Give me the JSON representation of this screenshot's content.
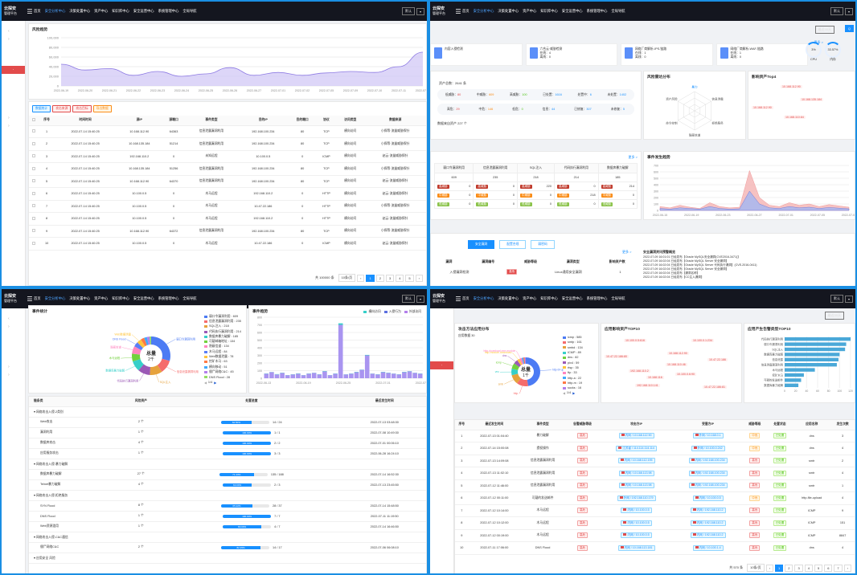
{
  "brand": {
    "l1": "云探安",
    "l2": "管理平台"
  },
  "nav": [
    "首页",
    "安全分析中心",
    "决策处置中心",
    "资产中心",
    "知识库中心",
    "安全运营中心",
    "系统管理中心",
    "全局导航"
  ],
  "nav_active": 1,
  "user": "默认",
  "q1": {
    "title": "风险趋势",
    "y_ticks": [
      "100,000",
      "80,000",
      "60,000",
      "40,000",
      "20,000",
      "0"
    ],
    "x_ticks": [
      "2022-06-19",
      "2022-06-20",
      "2022-06-21",
      "2022-06-22",
      "2022-06-23",
      "2022-06-24",
      "2022-06-25",
      "2022-06-26",
      "2022-06-27",
      "2022-07-01",
      "2022-07-02",
      "2022-07-05",
      "2022-07-09",
      "2022-07-10",
      "2022-07-11",
      "2022-07-12"
    ],
    "chart_data": {
      "type": "area",
      "series": [
        {
          "values": [
            45000,
            33000,
            36000,
            22000,
            30000,
            20000,
            25000,
            38000,
            22000,
            28000,
            22000,
            27000,
            30000,
            28000,
            40000,
            70000
          ]
        }
      ],
      "ylim": [
        0,
        100000
      ]
    },
    "tabs": [
      "数据统计",
      "攻击来源",
      "攻击目标",
      "导出数据"
    ],
    "cols": [
      "序号",
      "时间时间",
      "源IP",
      "源端口",
      "事件类型",
      "目的IP",
      "目的端口",
      "协议",
      "访问类型",
      "数据来源"
    ],
    "rows": [
      [
        "1",
        "2022-07-14 15:40:25",
        "10.168.112.90",
        "64363",
        "信息泄露漏洞利用",
        "192.168.100.234",
        "80",
        "TCP",
        "横向访问",
        "小探等·流量威胁探针"
      ],
      [
        "2",
        "2022-07-14 15:40:25",
        "10.168.135.184",
        "51214",
        "信息泄露漏洞利用",
        "192.168.100.234",
        "80",
        "TCP",
        "横向访问",
        "小探等·流量威胁探针"
      ],
      [
        "3",
        "2022-07-14 15:40:25",
        "192.168.110.2",
        "0",
        "未知远程",
        "10.100.0.5",
        "0",
        "ICMP",
        "横向访问",
        "赵云·流量威胁探针"
      ],
      [
        "4",
        "2022-07-14 15:40:25",
        "10.168.135.184",
        "51256",
        "信息泄露漏洞利用",
        "192.168.100.234",
        "80",
        "TCP",
        "横向访问",
        "小探等·流量威胁探针"
      ],
      [
        "5",
        "2022-07-14 15:40:25",
        "10.168.112.90",
        "64370",
        "信息泄露漏洞利用",
        "192.168.100.234",
        "80",
        "TCP",
        "横向访问",
        "赵云·流量威胁探针"
      ],
      [
        "6",
        "2022-07-14 15:40:25",
        "10.100.0.5",
        "0",
        "木马远程",
        "192.168.110.2",
        "0",
        "HTTP",
        "横向访问",
        "赵云·流量威胁探针"
      ],
      [
        "7",
        "2022-07-14 15:40:25",
        "10.100.0.5",
        "0",
        "木马远程",
        "10.47.22.186",
        "0",
        "HTTP",
        "横向访问",
        "小探等·流量威胁探针"
      ],
      [
        "8",
        "2022-07-14 15:40:25",
        "10.100.0.5",
        "0",
        "木马远程",
        "192.168.110.2",
        "0",
        "HTTP",
        "横向访问",
        "赵云·流量威胁探针"
      ],
      [
        "9",
        "2022-07-14 15:40:25",
        "10.168.112.90",
        "64372",
        "信息泄露漏洞利用",
        "192.168.100.234",
        "80",
        "TCP",
        "横向访问",
        "小探等·流量威胁探针"
      ],
      [
        "10",
        "2022-07-14 15:40:25",
        "10.100.0.5",
        "0",
        "木马远程",
        "10.47.22.186",
        "0",
        "ICMP",
        "横向访问",
        "赵云·流量威胁探针"
      ]
    ],
    "total": "共 100000 条",
    "pagesize": "10条/页",
    "pages": [
      "1",
      "2",
      "3",
      "4",
      "5"
    ]
  },
  "q2": {
    "btn_time": "最近30天",
    "top_cards": [
      {
        "title": "内容入侵检测",
        "l1": "",
        "l2": ""
      },
      {
        "title": "六合云·威胁检测",
        "l1": "在线：4",
        "l2": "离线：0"
      },
      {
        "title": "网络厂商解析-IPS-链路",
        "l1": "在线：1",
        "l2": "离线：0"
      },
      {
        "title": "网络厂商解析-WAF-链路",
        "l1": "在线：1",
        "l2": "离线：0"
      }
    ],
    "gauges": [
      {
        "v": "3%",
        "l": "CPU"
      },
      {
        "v": "33.57%",
        "l": "内存"
      }
    ],
    "more": "更多 >",
    "asset_total": "资产总数：2641 条",
    "asset_r1": [
      [
        "低威胁",
        "80"
      ],
      [
        "中威胁",
        "609"
      ],
      [
        "高威胁",
        "100"
      ],
      [
        "已处置",
        "1616"
      ],
      [
        "处置中",
        "6"
      ],
      [
        "未处置",
        "1402"
      ]
    ],
    "asset_r2": [
      [
        "高危",
        "29"
      ],
      [
        "中危",
        "146"
      ],
      [
        "低危",
        "0"
      ],
      [
        "信息",
        "44"
      ],
      [
        "已修复",
        "307"
      ],
      [
        "未修复",
        "5"
      ]
    ],
    "asset_foot": "数据来自资产 227 个",
    "radar_title": "风险雷达分布",
    "radar_labels": [
      "暴力",
      "信息泄露",
      "拒绝服务",
      "隐蔽信道",
      "命令控制",
      "资产风险"
    ],
    "top_title": "影响资产Top4",
    "top_ips": [
      "10.168.112.90",
      "10.168.135.184",
      "10.168.112.90",
      "10.168.110.64"
    ],
    "event_cols": [
      "弱口令漏洞利用",
      "信息泄露漏洞利用",
      "SQL注入",
      "代码执行漏洞利用",
      "数据库暴力破解"
    ],
    "event_vals": [
      "609",
      "235",
      "218",
      "214",
      "185"
    ],
    "event_rows": [
      [
        "0",
        "0",
        "220",
        "0",
        "214"
      ],
      [
        "0",
        "0",
        "0",
        "218",
        "0"
      ],
      [
        "0",
        "0",
        "0",
        "0",
        "0"
      ]
    ],
    "event_tags": [
      "高威胁",
      "中威胁",
      "低威胁"
    ],
    "trend_title": "事件发生趋势",
    "trend_x": [
      "2022-06-15",
      "2022-06-19",
      "2022-06-23",
      "2022-06-27",
      "2022-07-01",
      "2022-07-05",
      "2022-07-09"
    ],
    "trend_y": [
      "700",
      "600",
      "500",
      "400",
      "300",
      "200",
      "100",
      "0"
    ],
    "chart_data": {
      "type": "area",
      "series": [
        {
          "values": [
            60,
            40,
            80,
            50,
            30,
            120,
            60,
            40,
            50,
            620,
            200,
            80,
            60,
            120,
            80,
            100,
            60,
            90,
            70,
            50
          ]
        },
        {
          "values": [
            30,
            20,
            40,
            30,
            20,
            60,
            30,
            20,
            25,
            300,
            100,
            40,
            30,
            60,
            40,
            50,
            30,
            45,
            35,
            25
          ]
        }
      ],
      "ylim": [
        0,
        700
      ]
    },
    "subtabs": [
      "安全漏洞",
      "配置合规",
      "弱密码"
    ],
    "vuln_cols": [
      "漏洞编号",
      "威胁等级",
      "漏洞类型",
      "影响资产数"
    ],
    "vuln_row": [
      "",
      "",
      "Linux通用安全漏洞",
      "1"
    ],
    "vuln_name": "漏洞",
    "vuln_first": "入侵漏洞检测",
    "vuln_tag": "高危",
    "notice_title": "安全漏洞资讯预警概览",
    "notices": [
      "2022-07-09 16:01:01 已经发布【Oracle MySQL安全漏洞(CVE2016-3471)】",
      "2022-07-09 16:02:04 已经发布【Oracle MySQL Server 安全漏洞】",
      "2022-07-09 16:02:04 已经发布【Oracle MySQL Server 代码执行漏洞】(CVE-2016-0411)",
      "2022-07-09 16:02:04 已经发布【Oracle MySQL Server 安全漏洞】",
      "2022-07-09 16:02:04 已经发布【漏洞名称】",
      "2022-07-09 16:02:04 已经发布【CC注入漏洞】"
    ]
  },
  "q3": {
    "donut_title": "事件统计",
    "donut_center": "总量",
    "donut_center_val": "2千",
    "donut_labels": [
      "弱口令漏洞利用",
      "信息泄露漏洞利用",
      "SQL注入",
      "代码执行漏洞利用",
      "数据库暴力破解",
      "木马远程",
      "隐蔽信道",
      "DNS Flood",
      "Web数据泄露"
    ],
    "legend": [
      {
        "name": "弱口令漏洞利用 : 609",
        "color": "#4c7bf4"
      },
      {
        "name": "信息泄露漏洞利用 : 235",
        "color": "#f56c6c"
      },
      {
        "name": "SQL注入 : 218",
        "color": "#e6a23c"
      },
      {
        "name": "代码执行漏洞利用 : 214",
        "color": "#9b59b6"
      },
      {
        "name": "数据库暴力破解 : 185",
        "color": "#36cfc9"
      },
      {
        "name": "可疑邮箱地址 : 134",
        "color": "#73d13d"
      },
      {
        "name": "隐蔽信道 : 134",
        "color": "#ff85c0"
      },
      {
        "name": "木马远程 : 84",
        "color": "#597ef7"
      },
      {
        "name": "Web数据泄露 : 78",
        "color": "#ffc53d"
      },
      {
        "name": "挖矿木马 : 63",
        "color": "#ff7a45"
      },
      {
        "name": "横向移动 : 51",
        "color": "#40a9ff"
      },
      {
        "name": "僵尸网络C&C : 45",
        "color": "#b37feb"
      },
      {
        "name": "DNS Flood : 28",
        "color": "#95de64"
      }
    ],
    "page": "1/4",
    "trend_title": "事件趋势",
    "trend_legend": [
      "横向访问",
      "入侵行为",
      "外部访问"
    ],
    "trend_x": [
      "2022-06-13",
      "2022-06-19",
      "2022-06-25",
      "2022-07-01",
      "2022-07-07"
    ],
    "trend_y": [
      "800",
      "700",
      "600",
      "500",
      "400",
      "300",
      "200",
      "100",
      "0"
    ],
    "chart_data": {
      "type": "bar",
      "series": [
        {
          "name": "横向访问",
          "values": [
            60,
            80,
            50,
            70,
            40,
            50,
            60,
            40,
            60,
            70,
            50,
            90,
            40,
            60,
            700,
            50,
            60,
            80,
            110,
            300,
            60,
            50,
            80,
            70,
            60,
            50,
            80,
            90,
            70,
            60
          ]
        },
        {
          "name": "入侵行为",
          "values": [
            30,
            20,
            40,
            30,
            20,
            30,
            40,
            20,
            30,
            20,
            30,
            40,
            20,
            30,
            200,
            20,
            30,
            40,
            30,
            60,
            20,
            30,
            40,
            30,
            20,
            30,
            40,
            30,
            20,
            30
          ]
        }
      ],
      "ylim": [
        0,
        800
      ]
    },
    "tcols": [
      "链条类",
      "风险资产",
      "处置进度",
      "最近发生时间"
    ],
    "trows": [
      {
        "g": true,
        "n": "网络攻击入侵-2类别"
      },
      {
        "n": "Web攻击",
        "a": "2 个",
        "p": 0.63,
        "pl": "62.50%",
        "c": "14 / 24",
        "t": "2022-07-13 03:48:30"
      },
      {
        "n": "漏洞利用",
        "a": "1 个",
        "p": 1,
        "pl": "100.00%",
        "c": "1 / 1",
        "t": "2022-07-08 10:49:30"
      },
      {
        "n": "数据库攻击",
        "a": "4 个",
        "p": 1,
        "pl": "100.00%",
        "c": "2 / 2",
        "t": "2022-07-01 00:06:10"
      },
      {
        "n": "应用服务攻击",
        "a": "1 个",
        "p": 1,
        "pl": "100.00%",
        "c": "3 / 3",
        "t": "2022-06-28 16:24:10"
      },
      {
        "g": true,
        "n": "网络攻击入侵-暴力破解"
      },
      {
        "n": "数据库暴力破解",
        "a": "27 个",
        "p": 0.71,
        "pl": "71.43%",
        "c": "135 / 188",
        "t": "2022-07-14 16:52:30"
      },
      {
        "n": "Telnet暴力破解",
        "a": "4 个",
        "p": 0.6,
        "pl": "60.00%",
        "c": "2 / 3",
        "t": "2022-07-13 23:45:50"
      },
      {
        "g": true,
        "n": "网络攻击入侵-拒绝服务"
      },
      {
        "n": "SYN Flood",
        "a": "8 个",
        "p": 0.65,
        "pl": "65.22%",
        "c": "28 / 37",
        "t": "2022-07-14 15:48:50"
      },
      {
        "n": "DNS Flood",
        "a": "1 个",
        "p": 1,
        "pl": "100.00%",
        "c": "7 / 7",
        "t": "2022-07-11 11:19:50"
      },
      {
        "n": "Web资源滥用",
        "a": "1 个",
        "p": 0.8,
        "pl": "80.00%",
        "c": "4 / 7",
        "t": "2022-07-14 16:46:50"
      },
      {
        "g": true,
        "n": "网络攻击入侵-C&C通信"
      },
      {
        "n": "僵尸网络C&C",
        "a": "2 个",
        "p": 0.82,
        "pl": "82.35%",
        "c": "14 / 17",
        "t": "2022-07-06 06:08:10"
      },
      {
        "g": true,
        "n": "应用安全 风险"
      },
      {
        "n": "",
        "a": "",
        "p": 0,
        "pl": "",
        "c": "",
        "t": ""
      }
    ]
  },
  "q4": {
    "btn_time": "最近30天",
    "donut_title": "攻击方法应用分布",
    "donut_sub": "应用数据 30",
    "donut_center": "总量",
    "donut_center_val": "1千",
    "donut_labels": [
      "http-bf-upload",
      "http.",
      "smb",
      "vnc",
      "icmp",
      "dns",
      "http-module-download",
      "http-download.exe.module"
    ],
    "legend": [
      {
        "name": "icmp : 585",
        "color": "#4c7bf4"
      },
      {
        "name": "smtp : 161",
        "color": "#f56c6c"
      },
      {
        "name": "smbd : 134",
        "color": "#e6a23c"
      },
      {
        "name": "ICMP : 89",
        "color": "#36cfc9"
      },
      {
        "name": "dns : 82",
        "color": "#73d13d"
      },
      {
        "name": "pix4 : 59",
        "color": "#9b59b6"
      },
      {
        "name": "rtsp : 35",
        "color": "#ffc53d"
      },
      {
        "name": "ftp : 33",
        "color": "#ff85c0"
      },
      {
        "name": "http-a : 22",
        "color": "#40a9ff"
      },
      {
        "name": "http-m : 19",
        "color": "#ff7a45"
      },
      {
        "name": "socks : 16",
        "color": "#b37feb"
      }
    ],
    "page": "1/4",
    "cloud_title": "应用影响资产TOP10",
    "cloud": [
      "10.100.0.5:616",
      "10.100.0.1:234",
      "10.47.22.186:80",
      "10.168.112.90",
      "192.168.110.2",
      "10.168.110.46",
      "10.47.22.186",
      "192.168.110.141",
      "10.168.116",
      "10.100.0.6:90",
      "10.47.22.186:81"
    ],
    "hbar_title": "应用产生告警类型TOP10",
    "hbar_cats": [
      "代码执行漏洞利用",
      "弱口令漏洞利用",
      "SQL注入",
      "数据库暴力破解",
      "信息泄露",
      "信息泄露漏洞利用",
      "木马远程",
      "挖矿木马",
      "可疑的发送邮件",
      "数据库暴力破解"
    ],
    "chart_data": {
      "type": "bar",
      "categories": [
        "代码执行漏洞利用",
        "弱口令漏洞利用",
        "SQL注入",
        "数据库暴力破解",
        "信息泄露",
        "信息泄露漏洞利用",
        "木马远程",
        "挖矿木马",
        "可疑的发送邮件",
        "数据库暴力破解"
      ],
      "values": [
        120,
        112,
        110,
        100,
        98,
        95,
        55,
        35,
        30,
        25
      ],
      "xlim": [
        0,
        120
      ]
    },
    "hbar_x": [
      "0",
      "20",
      "40",
      "60",
      "80",
      "100",
      "120"
    ],
    "cols": [
      "序号",
      "最近发生时间",
      "事件类型",
      "告警威胁等级",
      "攻击方IP",
      "受害方IP",
      "威胁等级",
      "处置状态",
      "应用名称",
      "发生次数"
    ],
    "rows": [
      [
        "1",
        "2022-07-13 01:04:40",
        "暴力破解",
        "高危",
        "内网 / 10.168.112.90",
        "外网 / 10.168.0.1",
        "中危",
        "已处置",
        "dns",
        "3"
      ],
      [
        "2",
        "2022-07-14 15:00:08",
        "提权操作",
        "高危",
        "江苏省 / 114.114.114.114",
        "外网 / 10.100.0.242",
        "中危",
        "已处置",
        "dns",
        "4"
      ],
      [
        "3",
        "2022-07-13 14:09:08",
        "信息泄露漏洞利用",
        "高危",
        "内网 / 10.168.112.195",
        "内网 / 192.168.100.234",
        "高危",
        "已处置",
        "smtr",
        "2"
      ],
      [
        "4",
        "2022-07-13 11:02:10",
        "信息泄露漏洞利用",
        "高危",
        "内网 / 10.168.113.98",
        "内网 / 192.168.100.234",
        "高危",
        "已处置",
        "smtr",
        "4"
      ],
      [
        "5",
        "2022-07-12 11:46:00",
        "信息泄露漏洞利用",
        "高危",
        "内网 / 10.168.113.98",
        "内网 / 192.168.100.234",
        "高危",
        "已处置",
        "smtr",
        "1"
      ],
      [
        "6",
        "2022-07-12 00:11:00",
        "可疑的发送邮件",
        "高危",
        "外网 / 192.168.110.179",
        "内网 / 10.100.0.5",
        "中危",
        "已处置",
        "http-file-upload",
        "4"
      ],
      [
        "7",
        "2022-07-12 10:14:00",
        "木马远程",
        "高危",
        "内网 / 10.100.0.5",
        "内网 / 192.168.110.2",
        "高危",
        "已处置",
        "ICMP",
        "9"
      ],
      [
        "8",
        "2022-07-12 10:12:00",
        "木马远程",
        "高危",
        "内网 / 10.100.0.5",
        "内网 / 192.168.110.2",
        "高危",
        "已处置",
        "ICMP",
        "151"
      ],
      [
        "9",
        "2022-07-12 00:19:00",
        "木马远程",
        "高危",
        "内网 / 10.100.0.5",
        "内网 / 192.168.110.2",
        "高危",
        "已处置",
        "ICMP",
        "8847"
      ],
      [
        "10",
        "2022-07-11 17:06:00",
        "DNS Flood",
        "高危",
        "内网 / 10.168.113.181",
        "内网 / 10.100.1.4",
        "高危",
        "已处置",
        "dns",
        "4"
      ]
    ],
    "total": "共 570 条",
    "pagesize": "10条/页",
    "pages": [
      "1",
      "2",
      "3",
      "4",
      "5",
      "6",
      "7"
    ]
  }
}
